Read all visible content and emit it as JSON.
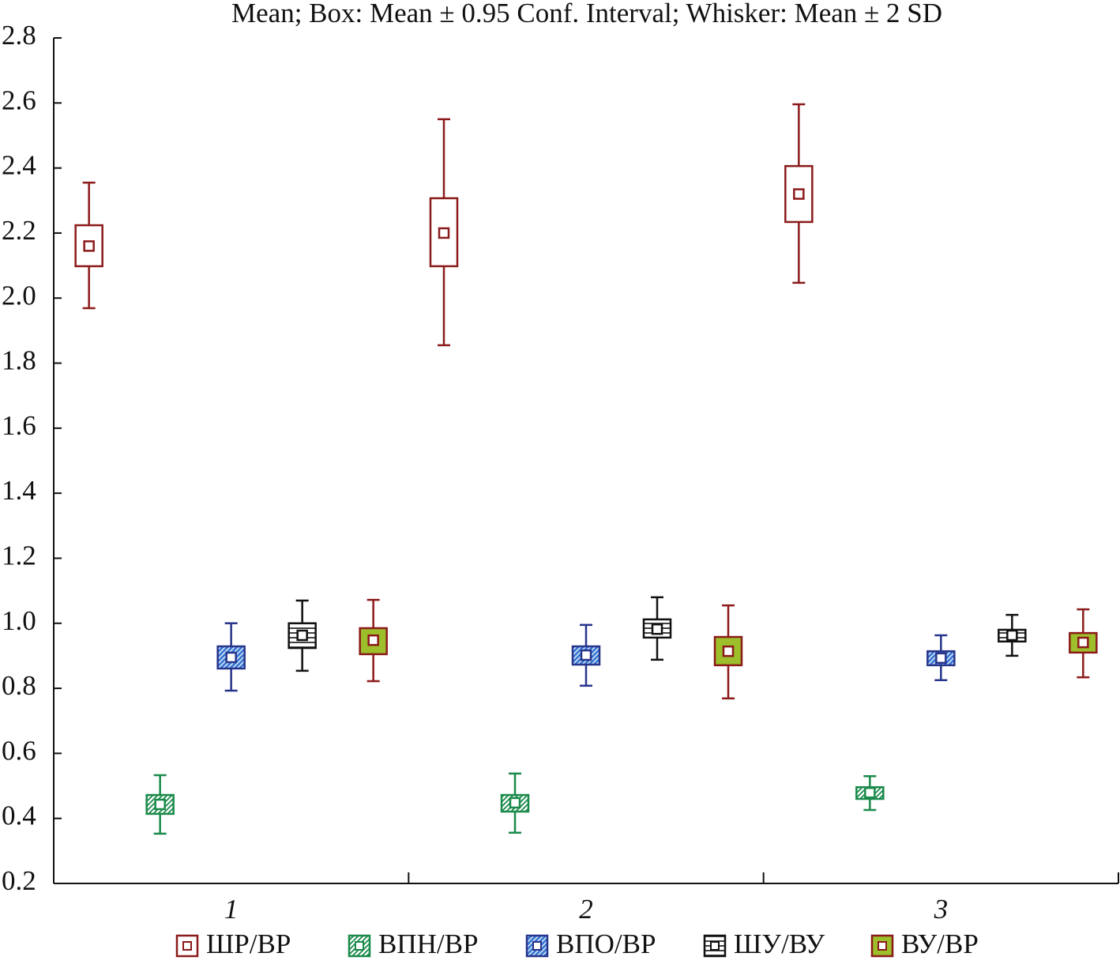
{
  "chart_data": {
    "type": "box",
    "title": "Mean; Box: Mean ± 0.95 Conf. Interval; Whisker: Mean ± 2 SD",
    "categories": [
      "1",
      "2",
      "3"
    ],
    "ylim": [
      0.2,
      2.8
    ],
    "yticks": [
      0.2,
      0.4,
      0.6,
      0.8,
      {
        "value": 1.0,
        "label": "1.0"
      },
      1.2,
      1.4,
      1.6,
      1.8,
      {
        "value": 2.0,
        "label": "2.0"
      },
      2.2,
      2.4,
      2.6,
      2.8
    ],
    "series": [
      {
        "name": "ШР/ВР",
        "color": "#8b1a1a",
        "fill_color": "#ffffff",
        "hatch": "none",
        "mean": [
          2.16,
          2.2,
          2.32
        ],
        "ci_low": [
          2.098,
          2.098,
          2.234
        ],
        "ci_high": [
          2.224,
          2.307,
          2.406
        ],
        "sd_low": [
          1.969,
          1.855,
          2.047
        ],
        "sd_high": [
          2.355,
          2.55,
          2.596
        ]
      },
      {
        "name": "ВПН/ВР",
        "color": "#1a8a4a",
        "fill_color": "#1a8a4a",
        "hatch": "diagonal",
        "mean": [
          0.443,
          0.448,
          0.479
        ],
        "ci_low": [
          0.414,
          0.421,
          0.46
        ],
        "ci_high": [
          0.472,
          0.472,
          0.496
        ],
        "sd_low": [
          0.353,
          0.356,
          0.426
        ],
        "sd_high": [
          0.533,
          0.538,
          0.53
        ]
      },
      {
        "name": "ВПО/ВР",
        "color": "#27348b",
        "fill_color": "#3a7ad4",
        "hatch": "diagonal-solid",
        "mean": [
          0.895,
          0.902,
          0.893
        ],
        "ci_low": [
          0.861,
          0.873,
          0.871
        ],
        "ci_high": [
          0.929,
          0.929,
          0.914
        ],
        "sd_low": [
          0.793,
          0.808,
          0.825
        ],
        "sd_high": [
          1.0,
          0.995,
          0.963
        ]
      },
      {
        "name": "ШУ/ВУ",
        "color": "#111111",
        "fill_color": "#111111",
        "hatch": "horizontal",
        "mean": [
          0.963,
          0.982,
          0.963
        ],
        "ci_low": [
          0.924,
          0.956,
          0.944
        ],
        "ci_high": [
          1.0,
          1.012,
          0.98
        ],
        "sd_low": [
          0.854,
          0.888,
          0.9
        ],
        "sd_high": [
          1.07,
          1.08,
          1.026
        ]
      },
      {
        "name": "ВУ/ВР",
        "color": "#8b1a1a",
        "fill_color": "#9cbf2b",
        "hatch": "solid",
        "mean": [
          0.948,
          0.914,
          0.941
        ],
        "ci_low": [
          0.905,
          0.871,
          0.91
        ],
        "ci_high": [
          0.985,
          0.958,
          0.97
        ],
        "sd_low": [
          0.822,
          0.769,
          0.834
        ],
        "sd_high": [
          1.072,
          1.055,
          1.043
        ]
      }
    ]
  }
}
